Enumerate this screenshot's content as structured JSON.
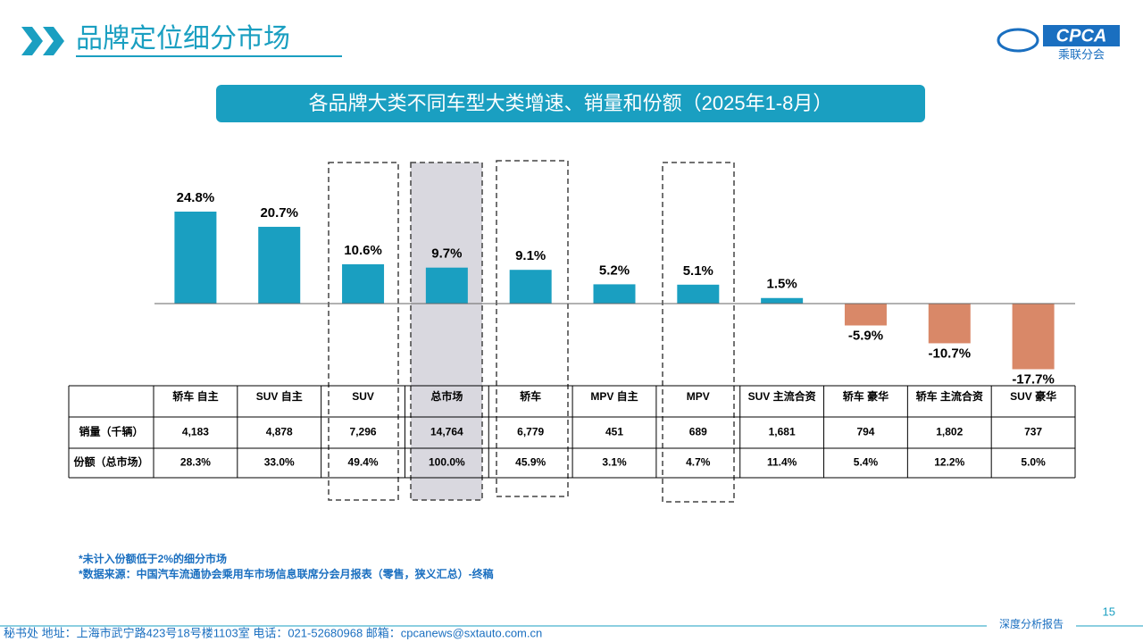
{
  "header": {
    "title": "品牌定位细分市场",
    "logo_text": "CPCA",
    "logo_subtext": "乘联分会"
  },
  "chart_data": {
    "type": "bar",
    "title": "各品牌大类不同车型大类增速、销量和份额（2025年1-8月）",
    "categories": [
      "轿车 自主",
      "SUV 自主",
      "SUV",
      "总市场",
      "轿车",
      "MPV 自主",
      "MPV",
      "SUV 主流合资",
      "轿车 豪华",
      "轿车 主流合资",
      "SUV 豪华"
    ],
    "values": [
      24.8,
      20.7,
      10.6,
      9.7,
      9.1,
      5.2,
      5.1,
      1.5,
      -5.9,
      -10.7,
      -17.7
    ],
    "value_labels": [
      "24.8%",
      "20.7%",
      "10.6%",
      "9.7%",
      "9.1%",
      "5.2%",
      "5.1%",
      "1.5%",
      "-5.9%",
      "-10.7%",
      "-17.7%"
    ],
    "color": "#1a9fc1",
    "negative_color": "#d98868"
  },
  "table": {
    "rows": [
      [
        "销量（千辆）",
        "4,183",
        "4,878",
        "7,296",
        "14,764",
        "6,779",
        "451",
        "689",
        "1,681",
        "794",
        "1,802",
        "737"
      ],
      [
        "份额（总市场）",
        "28.3%",
        "33.0%",
        "49.4%",
        "100.0%",
        "45.9%",
        "3.1%",
        "4.7%",
        "11.4%",
        "5.4%",
        "12.2%",
        "5.0%"
      ]
    ]
  },
  "notes": [
    "*未计入份额低于2%的细分市场",
    "*数据来源：中国汽车流通协会乘用车市场信息联席分会月报表（零售，狭义汇总）-终稿"
  ],
  "footer": {
    "address": "秘书处   地址：上海市武宁路423号18号楼1103室  电话：021-52680968   邮箱：cpcanews@sxtauto.com.cn",
    "report_type": "深度分析报告",
    "page_number": "15"
  }
}
